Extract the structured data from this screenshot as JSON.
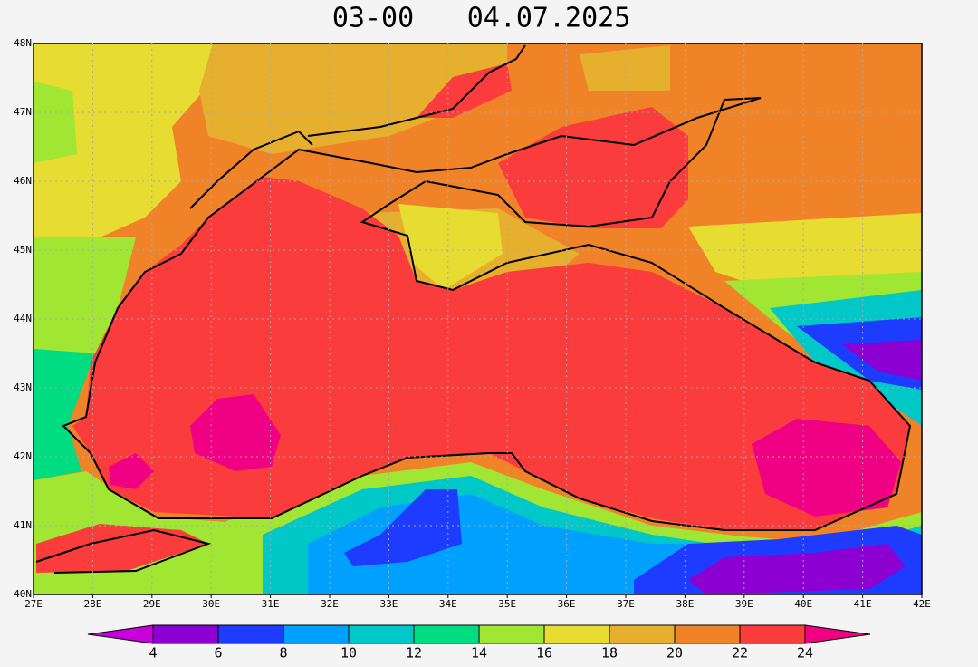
{
  "title": {
    "time": "03-00",
    "date": "04.07.2025"
  },
  "map": {
    "lon_labels": [
      "27E",
      "28E",
      "29E",
      "30E",
      "31E",
      "32E",
      "33E",
      "34E",
      "35E",
      "36E",
      "37E",
      "38E",
      "39E",
      "40E",
      "41E",
      "42E"
    ],
    "lat_labels": [
      "40N",
      "41N",
      "42N",
      "43N",
      "44N",
      "45N",
      "46N",
      "47N",
      "48N"
    ]
  },
  "colorbar": {
    "ticks": [
      4,
      6,
      8,
      10,
      12,
      14,
      16,
      18,
      20,
      22,
      24
    ],
    "colors": [
      "#c800dc",
      "#8c00d2",
      "#1e3cff",
      "#00a0ff",
      "#00c8c8",
      "#00dc82",
      "#a0e632",
      "#e6dc32",
      "#e6af2d",
      "#f08228",
      "#fa3c3c",
      "#f00082"
    ]
  }
}
